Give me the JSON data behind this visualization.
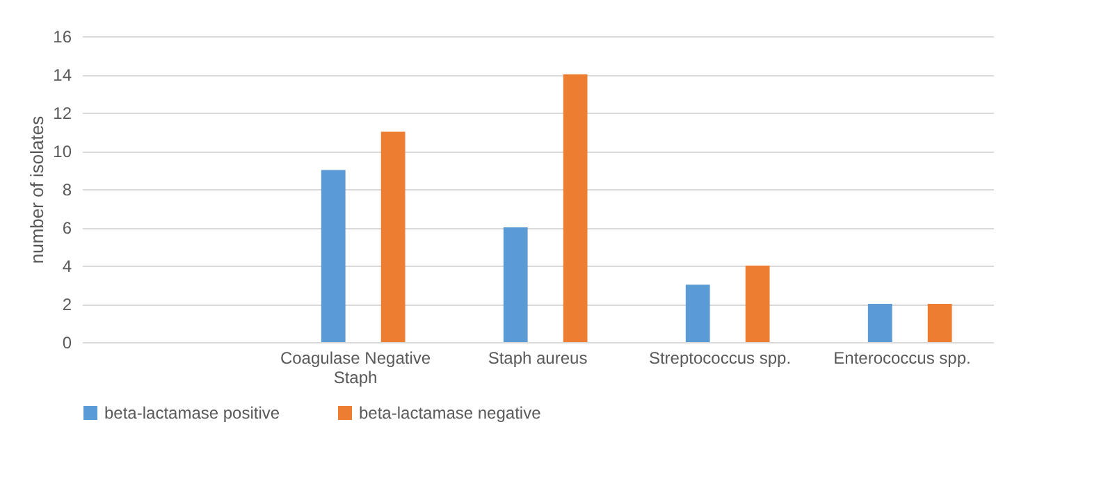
{
  "chart_data": {
    "type": "bar",
    "ylabel": "number of isolates",
    "categories": [
      null,
      "Coagulase Negative Staph",
      "Staph aureus",
      "Streptococcus spp.",
      "Enterococcus spp."
    ],
    "series": [
      {
        "name": "beta-lactamase positive",
        "color": "#5b9bd5",
        "values": [
          null,
          9,
          6,
          3,
          2
        ]
      },
      {
        "name": "beta-lactamase negative",
        "color": "#ed7d31",
        "values": [
          null,
          11,
          14,
          4,
          2
        ]
      }
    ],
    "ylim": [
      0,
      16
    ],
    "yticks": [
      0,
      2,
      4,
      6,
      8,
      10,
      12,
      14,
      16
    ],
    "grid": true,
    "legend": "bottom"
  }
}
